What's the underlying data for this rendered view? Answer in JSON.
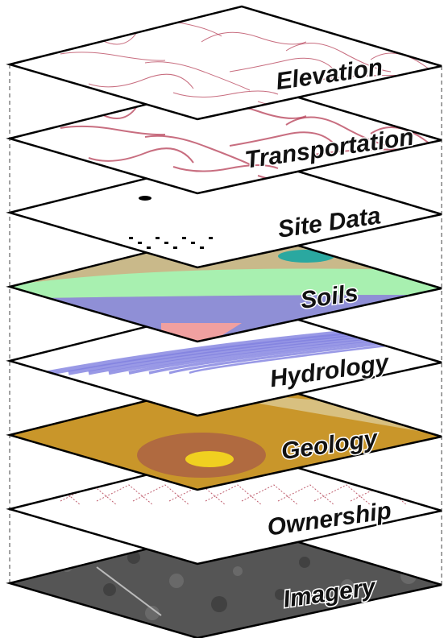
{
  "layers": [
    {
      "label": "Elevation"
    },
    {
      "label": "Transportation"
    },
    {
      "label": "Site Data"
    },
    {
      "label": "Soils"
    },
    {
      "label": "Hydrology"
    },
    {
      "label": "Geology"
    },
    {
      "label": "Ownership"
    },
    {
      "label": "Imagery"
    }
  ]
}
